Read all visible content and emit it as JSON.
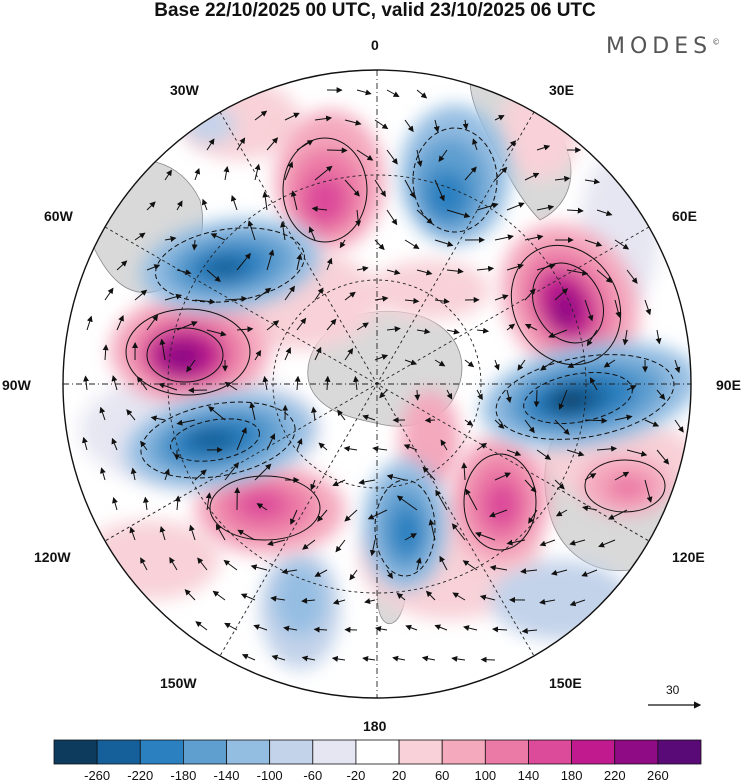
{
  "title": "Base 22/10/2025 00 UTC, valid 23/10/2025 06 UTC",
  "brand": "MODES",
  "brand_mark": "©",
  "longitude_labels": {
    "top": "0",
    "bottom": "180",
    "left": "90W",
    "right": "90E",
    "nw30": "30W",
    "nw60": "60W",
    "ne30": "30E",
    "ne60": "60E",
    "sw120": "120W",
    "sw150": "150W",
    "se120": "120E",
    "se150": "150E"
  },
  "reference_vector": {
    "value": "30"
  },
  "colorbar": {
    "labels": [
      "-260",
      "-220",
      "-180",
      "-140",
      "-100",
      "-60",
      "-20",
      "20",
      "60",
      "100",
      "140",
      "180",
      "220",
      "260"
    ],
    "colors": [
      "#0d3b5e",
      "#15609a",
      "#2b80c0",
      "#5e9fd0",
      "#94bde2",
      "#c3d3ea",
      "#e6e6f2",
      "#ffffff",
      "#f8d2d8",
      "#f4a9bd",
      "#ec7aa6",
      "#dc4a9a",
      "#c11a8e",
      "#8e0b85",
      "#5a0a76"
    ]
  },
  "colors": {
    "land": "#d8d8d8",
    "coast": "#888888"
  }
}
